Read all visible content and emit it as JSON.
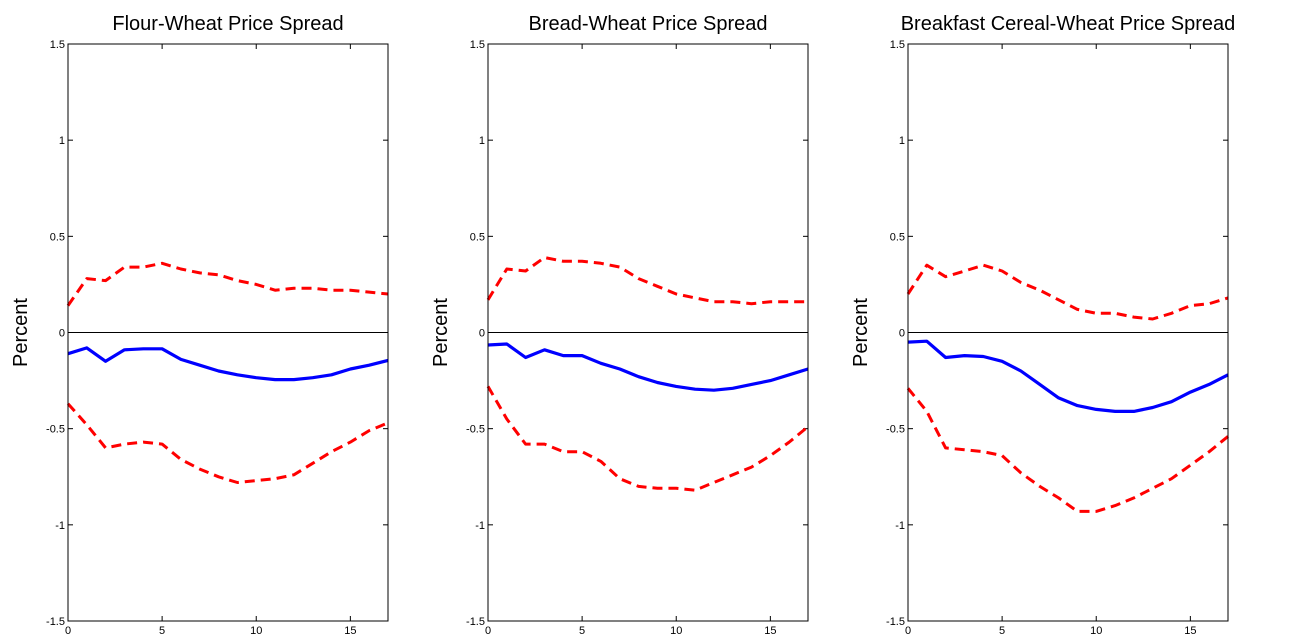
{
  "chart_data": [
    {
      "type": "line",
      "title": "Flour-Wheat Price Spread",
      "xlabel": "",
      "ylabel": "Percent",
      "xlim": [
        0,
        17
      ],
      "ylim": [
        -1.5,
        1.5
      ],
      "xticks": [
        0,
        5,
        10,
        15
      ],
      "yticks": [
        -1.5,
        -1,
        -0.5,
        0,
        0.5,
        1,
        1.5
      ],
      "ytick_labels": [
        "-1.5",
        "-1",
        "-0.5",
        "0",
        "0.5",
        "1",
        "1.5"
      ],
      "zero_line": true,
      "grid": false,
      "x": [
        0,
        1,
        2,
        3,
        4,
        5,
        6,
        7,
        8,
        9,
        10,
        11,
        12,
        13,
        14,
        15,
        16,
        17
      ],
      "series": [
        {
          "color": "#0000ff",
          "style": "solid",
          "values": [
            -0.11,
            -0.08,
            -0.15,
            -0.09,
            -0.085,
            -0.085,
            -0.14,
            -0.17,
            -0.2,
            -0.22,
            -0.235,
            -0.245,
            -0.245,
            -0.235,
            -0.22,
            -0.19,
            -0.17,
            -0.145
          ]
        },
        {
          "color": "#ff0000",
          "style": "dashed",
          "values": [
            0.14,
            0.28,
            0.27,
            0.34,
            0.34,
            0.36,
            0.33,
            0.31,
            0.3,
            0.27,
            0.25,
            0.22,
            0.23,
            0.23,
            0.22,
            0.22,
            0.21,
            0.2
          ]
        },
        {
          "color": "#ff0000",
          "style": "dashed",
          "values": [
            -0.37,
            -0.48,
            -0.6,
            -0.58,
            -0.57,
            -0.58,
            -0.66,
            -0.71,
            -0.75,
            -0.78,
            -0.77,
            -0.76,
            -0.74,
            -0.68,
            -0.62,
            -0.57,
            -0.51,
            -0.47
          ]
        }
      ]
    },
    {
      "type": "line",
      "title": "Bread-Wheat Price Spread",
      "xlabel": "",
      "ylabel": "Percent",
      "xlim": [
        0,
        17
      ],
      "ylim": [
        -1.5,
        1.5
      ],
      "xticks": [
        0,
        5,
        10,
        15
      ],
      "yticks": [
        -1.5,
        -1,
        -0.5,
        0,
        0.5,
        1,
        1.5
      ],
      "ytick_labels": [
        "-1.5",
        "-1",
        "-0.5",
        "0",
        "0.5",
        "1",
        "1.5"
      ],
      "zero_line": true,
      "grid": false,
      "x": [
        0,
        1,
        2,
        3,
        4,
        5,
        6,
        7,
        8,
        9,
        10,
        11,
        12,
        13,
        14,
        15,
        16,
        17
      ],
      "series": [
        {
          "color": "#0000ff",
          "style": "solid",
          "values": [
            -0.065,
            -0.06,
            -0.13,
            -0.09,
            -0.12,
            -0.12,
            -0.16,
            -0.19,
            -0.23,
            -0.26,
            -0.28,
            -0.295,
            -0.3,
            -0.29,
            -0.27,
            -0.25,
            -0.22,
            -0.19
          ]
        },
        {
          "color": "#ff0000",
          "style": "dashed",
          "values": [
            0.17,
            0.33,
            0.32,
            0.39,
            0.37,
            0.37,
            0.36,
            0.34,
            0.28,
            0.24,
            0.2,
            0.18,
            0.16,
            0.16,
            0.15,
            0.16,
            0.16,
            0.16
          ]
        },
        {
          "color": "#ff0000",
          "style": "dashed",
          "values": [
            -0.28,
            -0.45,
            -0.58,
            -0.58,
            -0.62,
            -0.62,
            -0.67,
            -0.76,
            -0.8,
            -0.81,
            -0.81,
            -0.82,
            -0.78,
            -0.74,
            -0.7,
            -0.64,
            -0.57,
            -0.49
          ]
        }
      ]
    },
    {
      "type": "line",
      "title": "Breakfast Cereal-Wheat Price Spread",
      "xlabel": "",
      "ylabel": "Percent",
      "xlim": [
        0,
        17
      ],
      "ylim": [
        -1.5,
        1.5
      ],
      "xticks": [
        0,
        5,
        10,
        15
      ],
      "yticks": [
        -1.5,
        -1,
        -0.5,
        0,
        0.5,
        1,
        1.5
      ],
      "ytick_labels": [
        "-1.5",
        "-1",
        "-0.5",
        "0",
        "0.5",
        "1",
        "1.5"
      ],
      "zero_line": true,
      "grid": false,
      "x": [
        0,
        1,
        2,
        3,
        4,
        5,
        6,
        7,
        8,
        9,
        10,
        11,
        12,
        13,
        14,
        15,
        16,
        17
      ],
      "series": [
        {
          "color": "#0000ff",
          "style": "solid",
          "values": [
            -0.05,
            -0.045,
            -0.13,
            -0.12,
            -0.125,
            -0.15,
            -0.2,
            -0.27,
            -0.34,
            -0.38,
            -0.4,
            -0.41,
            -0.41,
            -0.39,
            -0.36,
            -0.31,
            -0.27,
            -0.22
          ]
        },
        {
          "color": "#ff0000",
          "style": "dashed",
          "values": [
            0.2,
            0.35,
            0.29,
            0.32,
            0.35,
            0.32,
            0.26,
            0.22,
            0.17,
            0.12,
            0.1,
            0.1,
            0.08,
            0.07,
            0.1,
            0.14,
            0.15,
            0.18
          ]
        },
        {
          "color": "#ff0000",
          "style": "dashed",
          "values": [
            -0.29,
            -0.41,
            -0.6,
            -0.61,
            -0.62,
            -0.64,
            -0.73,
            -0.8,
            -0.86,
            -0.93,
            -0.93,
            -0.9,
            -0.86,
            -0.81,
            -0.76,
            -0.69,
            -0.62,
            -0.54
          ]
        }
      ]
    }
  ]
}
